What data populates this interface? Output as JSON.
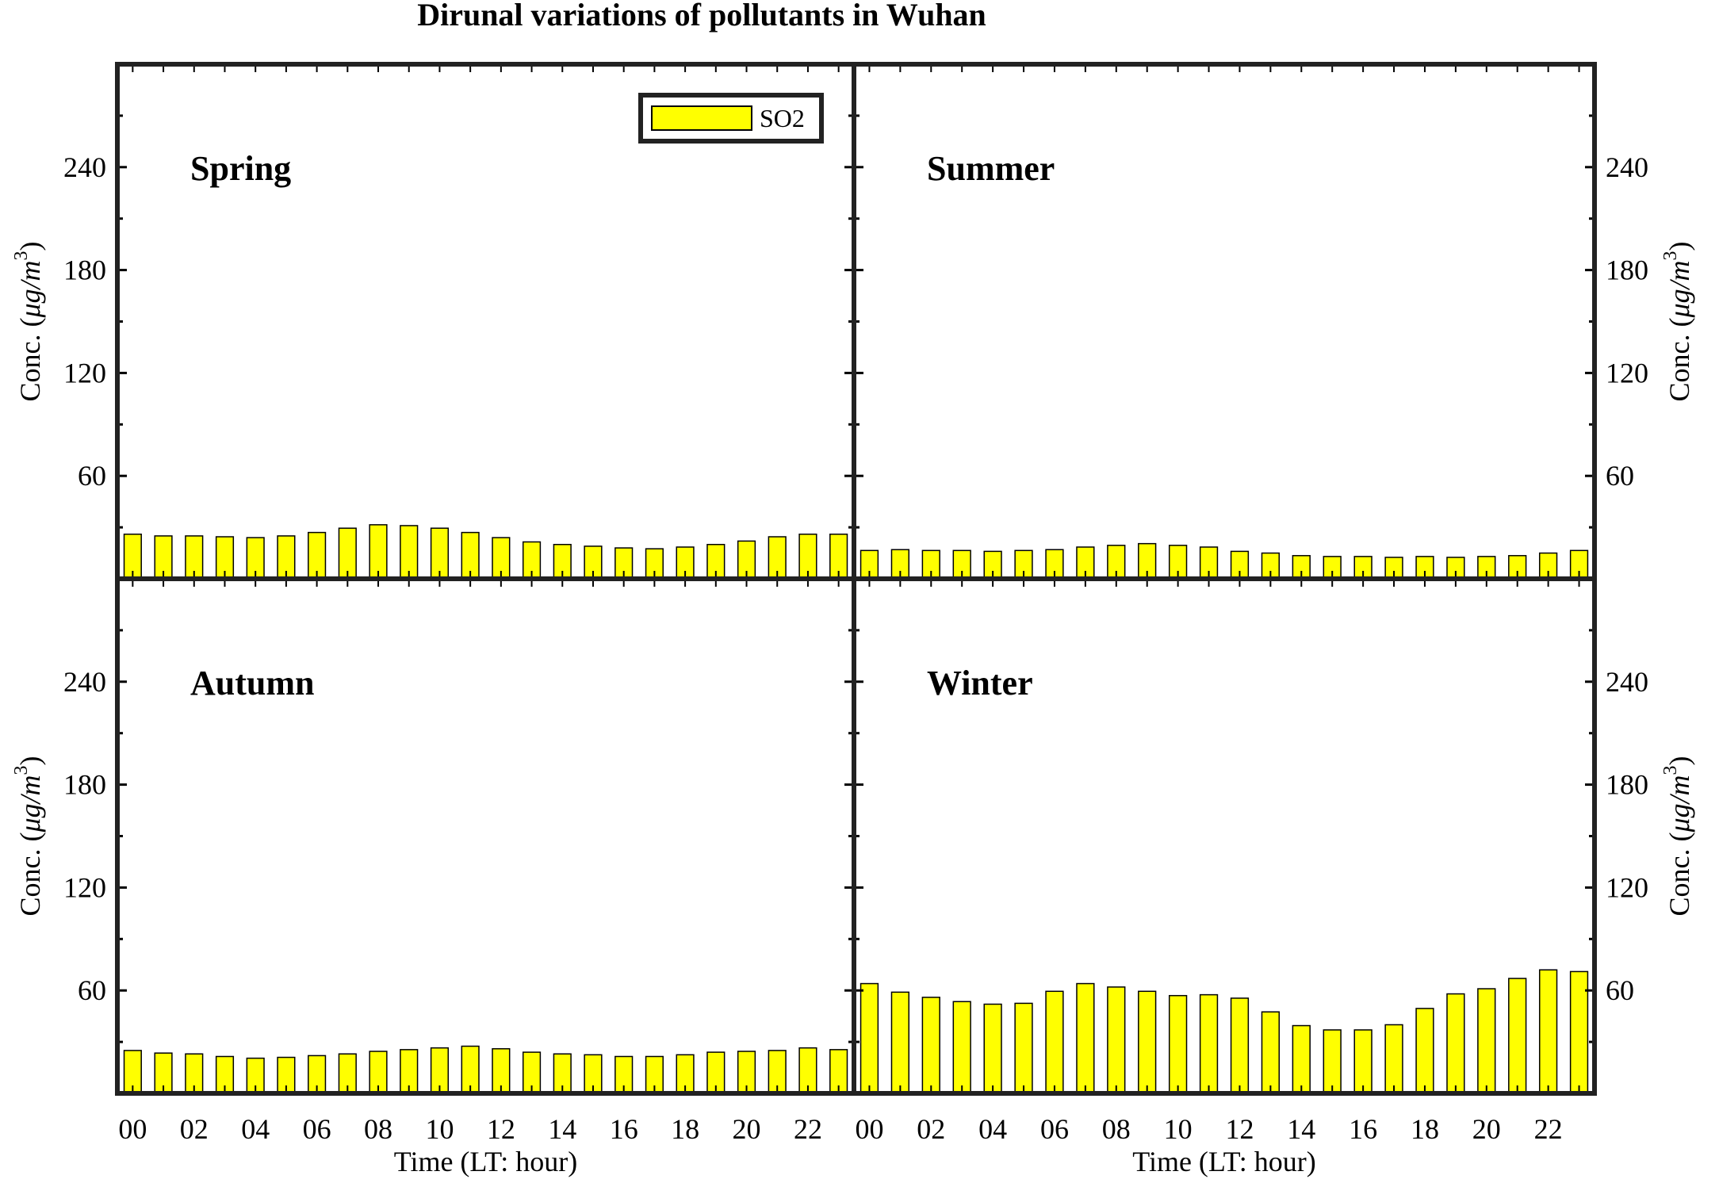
{
  "title": "Dirunal variations of pollutants in Wuhan",
  "legend": {
    "label": "SO2",
    "placement": "top-right of first panel"
  },
  "colors": {
    "bar_fill": "#ffff00",
    "bar_stroke": "#000000",
    "frame": "#222222"
  },
  "axes": {
    "ylabel": "Conc. (μg/m3)",
    "ylabel_main": "Conc. (",
    "ylabel_unit": "μg/m",
    "ylabel_sup": "3",
    "ylabel_close": ")",
    "xlabel": "Time (LT: hour)",
    "yticks": [
      60,
      120,
      180,
      240
    ],
    "ylim": [
      0,
      300
    ],
    "xtick_labels": [
      "00",
      "02",
      "04",
      "06",
      "08",
      "10",
      "12",
      "14",
      "16",
      "18",
      "20",
      "22"
    ]
  },
  "chart_data": {
    "type": "bar",
    "title": "Dirunal variations of pollutants in Wuhan",
    "xlabel": "Time (LT: hour)",
    "ylabel": "Conc. (μg/m3)",
    "ylim": [
      0,
      300
    ],
    "x": [
      0,
      1,
      2,
      3,
      4,
      5,
      6,
      7,
      8,
      9,
      10,
      11,
      12,
      13,
      14,
      15,
      16,
      17,
      18,
      19,
      20,
      21,
      22,
      23
    ],
    "panels": [
      {
        "name": "Spring",
        "series": [
          {
            "name": "SO2",
            "values": [
              26,
              25,
              25,
              24.5,
              24,
              25,
              27,
              29.5,
              31.5,
              31,
              29.5,
              27,
              24,
              21.5,
              20,
              19,
              18,
              17.5,
              18.5,
              20,
              22,
              24.5,
              26,
              26
            ]
          }
        ]
      },
      {
        "name": "Summer",
        "series": [
          {
            "name": "SO2",
            "values": [
              16.5,
              17,
              16.5,
              16.5,
              16,
              16.5,
              17,
              18.5,
              19.5,
              20.5,
              19.5,
              18.5,
              16,
              15,
              13.5,
              13,
              13,
              12.5,
              13,
              12.5,
              13,
              13.5,
              15,
              16.5
            ]
          }
        ]
      },
      {
        "name": "Autumn",
        "series": [
          {
            "name": "SO2",
            "values": [
              25,
              23.5,
              23,
              21.5,
              20.5,
              21,
              22,
              23,
              24.5,
              25.5,
              26.5,
              27.5,
              26,
              24,
              23,
              22.5,
              21.5,
              21.5,
              22.5,
              24,
              24.5,
              25,
              26.5,
              25.5
            ]
          }
        ]
      },
      {
        "name": "Winter",
        "series": [
          {
            "name": "SO2",
            "values": [
              64,
              59,
              56,
              53.5,
              52,
              52.5,
              59.5,
              64,
              62,
              59.5,
              57,
              57.5,
              55.5,
              47.5,
              39.5,
              37,
              37,
              40,
              49.5,
              58,
              61,
              67,
              72,
              71
            ]
          }
        ]
      }
    ]
  }
}
